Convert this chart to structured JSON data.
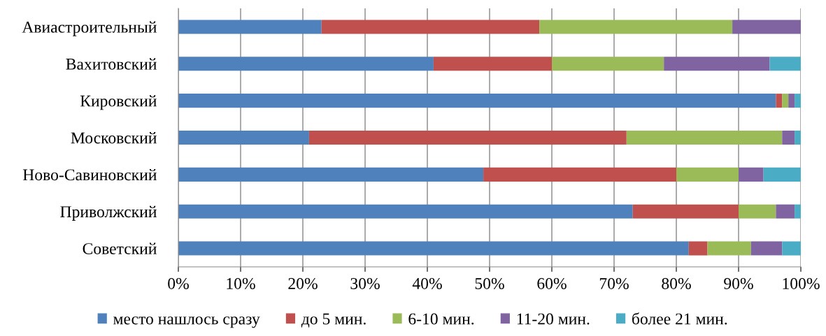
{
  "chart_data": {
    "type": "bar",
    "orientation": "horizontal",
    "stacked": true,
    "categories": [
      "Авиастроительный",
      "Вахитовский",
      "Кировский",
      "Московский",
      "Ново-Савиновский",
      "Приволжский",
      "Советский"
    ],
    "series": [
      {
        "name": "место нашлось сразу",
        "color": "#4f81bd",
        "values": [
          23,
          41,
          96,
          21,
          49,
          73,
          82
        ]
      },
      {
        "name": "до 5 мин.",
        "color": "#c0504d",
        "values": [
          35,
          19,
          1,
          51,
          31,
          17,
          3
        ]
      },
      {
        "name": "6-10 мин.",
        "color": "#9bbb59",
        "values": [
          31,
          18,
          1,
          25,
          10,
          6,
          7
        ]
      },
      {
        "name": "11-20 мин.",
        "color": "#8064a2",
        "values": [
          11,
          17,
          1,
          2,
          4,
          3,
          5
        ]
      },
      {
        "name": "более 21 мин.",
        "color": "#4bacc6",
        "values": [
          0,
          5,
          1,
          1,
          6,
          1,
          3
        ]
      }
    ],
    "xlim": [
      0,
      100
    ],
    "xticks": [
      {
        "value": 0,
        "label": "0%"
      },
      {
        "value": 10,
        "label": "10%"
      },
      {
        "value": 20,
        "label": "20%"
      },
      {
        "value": 30,
        "label": "30%"
      },
      {
        "value": 40,
        "label": "40%"
      },
      {
        "value": 50,
        "label": "50%"
      },
      {
        "value": 60,
        "label": "60%"
      },
      {
        "value": 70,
        "label": "70%"
      },
      {
        "value": 80,
        "label": "80%"
      },
      {
        "value": 90,
        "label": "90%"
      },
      {
        "value": 100,
        "label": "100%"
      }
    ],
    "grid": "x",
    "legend": "bottom"
  }
}
